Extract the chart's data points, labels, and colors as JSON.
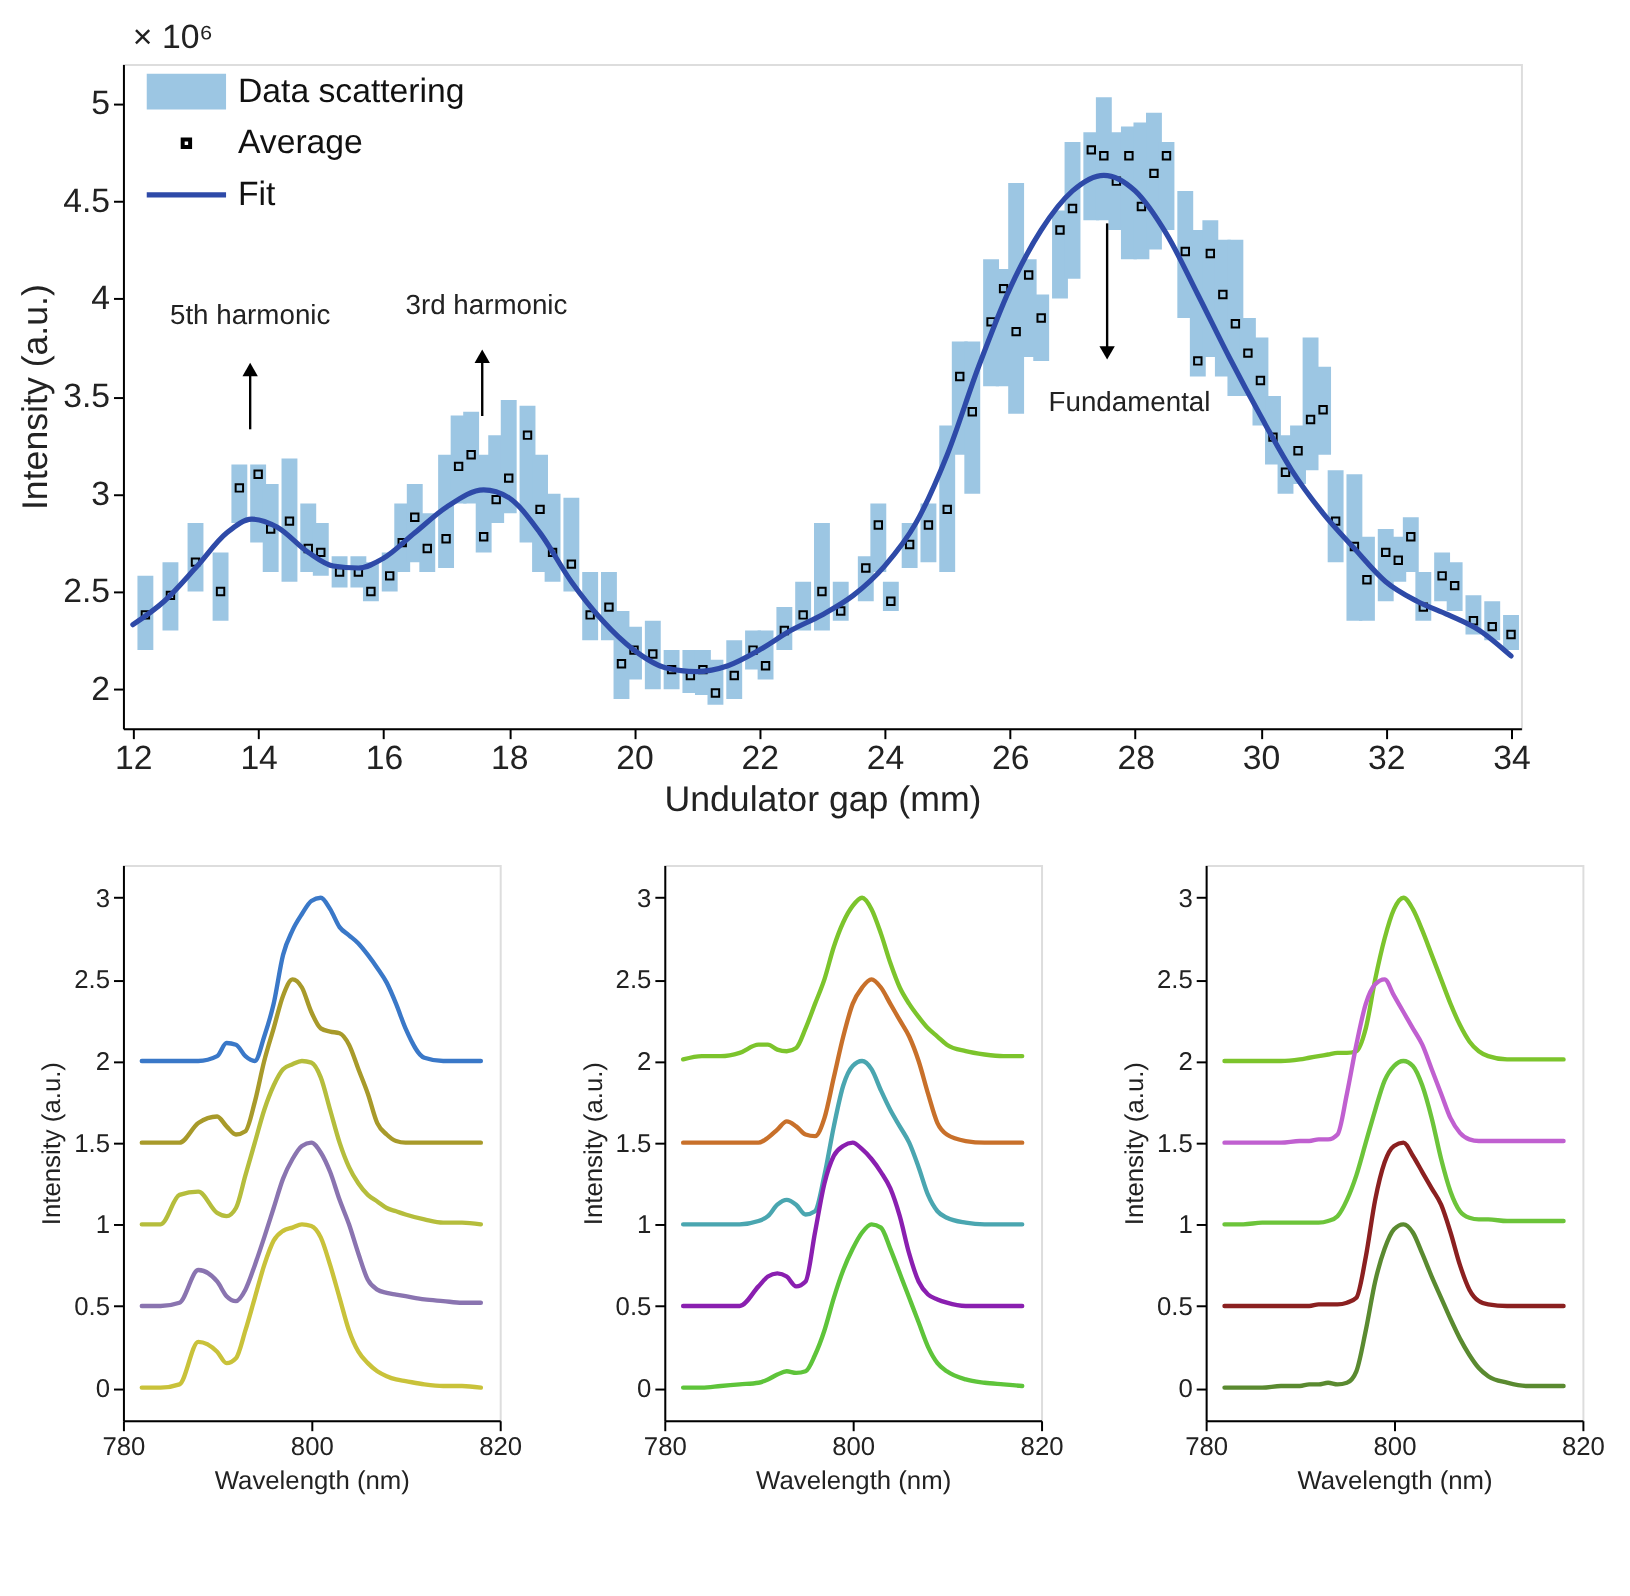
{
  "chart_data": [
    {
      "type": "line",
      "xlabel": "Undulator gap (mm)",
      "ylabel": "Intensity (a.u.)",
      "xlim": [
        12,
        34
      ],
      "xticks": [
        12,
        14,
        16,
        18,
        20,
        22,
        24,
        26,
        28,
        30,
        32,
        34
      ],
      "ylim": [
        1.8,
        5.2
      ],
      "yticks": [
        2,
        2.5,
        3,
        3.5,
        4,
        4.5,
        5
      ],
      "grid": false,
      "legend": "top left",
      "annotations": [
        "× 10⁶",
        "5th harmonic",
        "3rd harmonic",
        "Fundamental"
      ],
      "series": [
        {
          "name": "Data scattering",
          "type": "bar",
          "color": "#9cc6e3",
          "x": [
            12.2,
            12.6,
            13.0,
            13.4,
            13.7,
            14.0,
            14.2,
            14.5,
            14.8,
            15.0,
            15.3,
            15.6,
            15.8,
            16.1,
            16.3,
            16.5,
            16.7,
            17.0,
            17.2,
            17.4,
            17.6,
            17.8,
            18.0,
            18.3,
            18.5,
            18.7,
            19.0,
            19.3,
            19.6,
            19.8,
            20.0,
            20.3,
            20.6,
            20.9,
            21.1,
            21.3,
            21.6,
            21.9,
            22.1,
            22.4,
            22.7,
            23.0,
            23.3,
            23.7,
            23.9,
            24.1,
            24.4,
            24.7,
            25.0,
            25.2,
            25.4,
            25.7,
            25.9,
            26.1,
            26.3,
            26.5,
            26.8,
            27.0,
            27.3,
            27.5,
            27.7,
            27.9,
            28.1,
            28.3,
            28.5,
            28.8,
            29.0,
            29.2,
            29.4,
            29.6,
            29.8,
            30.0,
            30.2,
            30.4,
            30.6,
            30.8,
            31.0,
            31.2,
            31.5,
            31.7,
            32.0,
            32.2,
            32.4,
            32.6,
            32.9,
            33.1,
            33.4,
            33.7,
            34.0
          ],
          "base": [
            2.2,
            2.3,
            2.5,
            2.35,
            2.85,
            2.75,
            2.6,
            2.55,
            2.6,
            2.58,
            2.52,
            2.52,
            2.45,
            2.5,
            2.6,
            2.65,
            2.6,
            2.62,
            2.95,
            2.95,
            2.7,
            2.85,
            2.9,
            2.75,
            2.6,
            2.55,
            2.5,
            2.25,
            2.25,
            1.95,
            2.05,
            2.0,
            2.0,
            1.98,
            1.97,
            1.92,
            1.95,
            2.1,
            2.05,
            2.2,
            2.3,
            2.3,
            2.35,
            2.45,
            2.6,
            2.4,
            2.62,
            2.65,
            2.6,
            3.2,
            3.0,
            3.55,
            3.55,
            3.41,
            3.7,
            3.68,
            4.0,
            4.1,
            4.4,
            4.4,
            4.35,
            4.2,
            4.2,
            4.25,
            4.35,
            3.9,
            3.6,
            3.7,
            3.6,
            3.5,
            3.5,
            3.35,
            3.15,
            3.0,
            3.05,
            3.12,
            3.2,
            2.65,
            2.35,
            2.35,
            2.45,
            2.55,
            2.6,
            2.35,
            2.45,
            2.4,
            2.28,
            2.25,
            2.2
          ],
          "values": [
            0.38,
            0.35,
            0.35,
            0.35,
            0.3,
            0.4,
            0.45,
            0.63,
            0.35,
            0.27,
            0.16,
            0.16,
            0.2,
            0.2,
            0.35,
            0.4,
            0.3,
            0.58,
            0.45,
            0.47,
            0.5,
            0.45,
            0.58,
            0.7,
            0.6,
            0.45,
            0.48,
            0.35,
            0.35,
            0.45,
            0.27,
            0.35,
            0.2,
            0.22,
            0.23,
            0.23,
            0.3,
            0.2,
            0.25,
            0.22,
            0.25,
            0.55,
            0.2,
            0.23,
            0.35,
            0.15,
            0.23,
            0.3,
            0.75,
            0.58,
            0.78,
            0.65,
            0.6,
            1.18,
            0.5,
            0.34,
            0.45,
            0.7,
            0.45,
            0.63,
            0.5,
            0.68,
            0.7,
            0.7,
            0.45,
            0.65,
            0.75,
            0.7,
            0.7,
            0.8,
            0.4,
            0.45,
            0.35,
            0.3,
            0.3,
            0.68,
            0.45,
            0.47,
            0.75,
            0.43,
            0.37,
            0.23,
            0.28,
            0.25,
            0.25,
            0.25,
            0.2,
            0.2,
            0.18
          ]
        },
        {
          "name": "Average",
          "type": "scatter",
          "color": "#000000",
          "marker": "square",
          "x": [
            12.2,
            12.6,
            13.0,
            13.4,
            13.7,
            14.0,
            14.2,
            14.5,
            14.8,
            15.0,
            15.3,
            15.6,
            15.8,
            16.1,
            16.3,
            16.5,
            16.7,
            17.0,
            17.2,
            17.4,
            17.6,
            17.8,
            18.0,
            18.3,
            18.5,
            18.7,
            19.0,
            19.3,
            19.6,
            19.8,
            20.0,
            20.3,
            20.6,
            20.9,
            21.1,
            21.3,
            21.6,
            21.9,
            22.1,
            22.4,
            22.7,
            23.0,
            23.3,
            23.7,
            23.9,
            24.1,
            24.4,
            24.7,
            25.0,
            25.2,
            25.4,
            25.7,
            25.9,
            26.1,
            26.3,
            26.5,
            26.8,
            27.0,
            27.3,
            27.5,
            27.7,
            27.9,
            28.1,
            28.3,
            28.5,
            28.8,
            29.0,
            29.2,
            29.4,
            29.6,
            29.8,
            30.0,
            30.2,
            30.4,
            30.6,
            30.8,
            31.0,
            31.2,
            31.5,
            31.7,
            32.0,
            32.2,
            32.4,
            32.6,
            32.9,
            33.1,
            33.4,
            33.7,
            34.0
          ],
          "values": [
            2.38,
            2.48,
            2.65,
            2.5,
            3.03,
            3.1,
            2.82,
            2.86,
            2.72,
            2.7,
            2.6,
            2.6,
            2.5,
            2.58,
            2.75,
            2.88,
            2.72,
            2.77,
            3.14,
            3.2,
            2.78,
            2.97,
            3.08,
            3.3,
            2.92,
            2.7,
            2.64,
            2.38,
            2.42,
            2.13,
            2.2,
            2.18,
            2.1,
            2.07,
            2.1,
            1.98,
            2.07,
            2.2,
            2.12,
            2.3,
            2.38,
            2.5,
            2.4,
            2.62,
            2.84,
            2.45,
            2.74,
            2.84,
            2.92,
            3.6,
            3.42,
            3.88,
            4.05,
            3.83,
            4.12,
            3.9,
            4.35,
            4.46,
            4.76,
            4.73,
            4.6,
            4.73,
            4.47,
            4.64,
            4.73,
            4.24,
            3.68,
            4.23,
            4.02,
            3.87,
            3.72,
            3.58,
            3.29,
            3.11,
            3.22,
            3.38,
            3.43,
            2.86,
            2.73,
            2.56,
            2.7,
            2.66,
            2.78,
            2.42,
            2.58,
            2.53,
            2.35,
            2.32,
            2.28
          ]
        },
        {
          "name": "Fit",
          "type": "line",
          "color": "#2e4aa8",
          "x": [
            12,
            12.5,
            13,
            13.5,
            13.9,
            14.3,
            14.8,
            15.2,
            15.6,
            16,
            16.5,
            17,
            17.6,
            18,
            18.5,
            19,
            19.5,
            20,
            20.5,
            21,
            21.5,
            22,
            22.5,
            23,
            23.5,
            24,
            24.5,
            25,
            25.5,
            26,
            26.5,
            27,
            27.5,
            28,
            28.5,
            29,
            29.5,
            30,
            30.5,
            31,
            31.5,
            32,
            32.5,
            33,
            33.5,
            34
          ],
          "values": [
            2.33,
            2.45,
            2.62,
            2.8,
            2.87,
            2.83,
            2.7,
            2.63,
            2.62,
            2.67,
            2.8,
            2.93,
            3.02,
            2.98,
            2.8,
            2.55,
            2.35,
            2.2,
            2.11,
            2.09,
            2.12,
            2.2,
            2.3,
            2.38,
            2.48,
            2.63,
            2.85,
            3.2,
            3.65,
            4.05,
            4.35,
            4.55,
            4.63,
            4.55,
            4.33,
            4.02,
            3.7,
            3.4,
            3.12,
            2.9,
            2.72,
            2.55,
            2.45,
            2.38,
            2.3,
            2.17
          ]
        }
      ]
    },
    {
      "type": "line",
      "xlabel": "Wavelength (nm)",
      "ylabel": "Intensity (a.u.)",
      "xlim": [
        780,
        820
      ],
      "xticks": [
        780,
        800,
        820
      ],
      "ylim": [
        -0.2,
        3.2
      ],
      "yticks": [
        0,
        0.5,
        1,
        1.5,
        2,
        2.5,
        3
      ],
      "grid": false,
      "x": [
        782,
        784,
        786,
        788,
        790,
        791,
        792,
        793,
        794,
        795,
        796,
        797,
        798,
        799,
        800,
        801,
        802,
        803,
        804,
        805,
        806,
        807,
        808,
        809,
        810,
        812,
        814,
        816,
        818
      ],
      "series": [
        {
          "color": "#3a78c8",
          "values": [
            2,
            2,
            2,
            2,
            2.03,
            2.11,
            2.1,
            2.03,
            2.0,
            2.15,
            2.35,
            2.65,
            2.8,
            2.9,
            2.98,
            3.0,
            2.93,
            2.82,
            2.77,
            2.72,
            2.65,
            2.57,
            2.48,
            2.35,
            2.2,
            2.02,
            2,
            2,
            2
          ]
        },
        {
          "color": "#a89a2a",
          "values": [
            1.5,
            1.5,
            1.5,
            1.62,
            1.66,
            1.6,
            1.55,
            1.57,
            1.75,
            2.0,
            2.2,
            2.4,
            2.5,
            2.45,
            2.3,
            2.2,
            2.18,
            2.17,
            2.1,
            1.95,
            1.8,
            1.62,
            1.55,
            1.51,
            1.5,
            1.5,
            1.5,
            1.5,
            1.5
          ]
        },
        {
          "color": "#b5bd3c",
          "values": [
            1,
            1,
            1.18,
            1.2,
            1.07,
            1.05,
            1.1,
            1.3,
            1.5,
            1.7,
            1.85,
            1.95,
            1.98,
            2.0,
            1.99,
            1.9,
            1.7,
            1.5,
            1.35,
            1.25,
            1.18,
            1.14,
            1.1,
            1.08,
            1.06,
            1.03,
            1.01,
            1.01,
            1.0
          ]
        },
        {
          "color": "#8a74b0",
          "values": [
            0.5,
            0.5,
            0.52,
            0.72,
            0.65,
            0.56,
            0.53,
            0.6,
            0.75,
            0.92,
            1.1,
            1.28,
            1.4,
            1.48,
            1.5,
            1.44,
            1.32,
            1.15,
            1.0,
            0.82,
            0.66,
            0.6,
            0.58,
            0.57,
            0.56,
            0.54,
            0.53,
            0.52,
            0.52
          ]
        },
        {
          "color": "#c9c23a",
          "values": [
            0,
            0,
            0.02,
            0.28,
            0.22,
            0.15,
            0.18,
            0.35,
            0.55,
            0.75,
            0.9,
            0.96,
            0.98,
            1.0,
            0.99,
            0.92,
            0.75,
            0.55,
            0.35,
            0.22,
            0.15,
            0.1,
            0.07,
            0.05,
            0.04,
            0.02,
            0.01,
            0.01,
            0
          ]
        }
      ]
    },
    {
      "type": "line",
      "xlabel": "Wavelength (nm)",
      "ylabel": "Intensity (a.u.)",
      "xlim": [
        780,
        820
      ],
      "xticks": [
        780,
        800,
        820
      ],
      "ylim": [
        -0.2,
        3.2
      ],
      "yticks": [
        0,
        0.5,
        1,
        1.5,
        2,
        2.5,
        3
      ],
      "grid": false,
      "x": [
        782,
        784,
        786,
        788,
        790,
        791,
        792,
        793,
        794,
        795,
        796,
        797,
        798,
        799,
        800,
        801,
        802,
        803,
        804,
        805,
        806,
        807,
        808,
        809,
        810,
        812,
        814,
        816,
        818
      ],
      "series": [
        {
          "color": "#7cc42c",
          "values": [
            2.01,
            2.03,
            2.03,
            2.05,
            2.1,
            2.1,
            2.07,
            2.06,
            2.08,
            2.2,
            2.35,
            2.5,
            2.7,
            2.85,
            2.95,
            3.0,
            2.93,
            2.78,
            2.6,
            2.45,
            2.35,
            2.27,
            2.2,
            2.15,
            2.1,
            2.06,
            2.04,
            2.03,
            2.03
          ]
        },
        {
          "color": "#c8702a",
          "values": [
            1.5,
            1.5,
            1.5,
            1.5,
            1.5,
            1.53,
            1.58,
            1.63,
            1.6,
            1.55,
            1.54,
            1.65,
            1.9,
            2.15,
            2.35,
            2.45,
            2.5,
            2.45,
            2.35,
            2.25,
            2.15,
            2.0,
            1.8,
            1.62,
            1.55,
            1.51,
            1.5,
            1.5,
            1.5
          ]
        },
        {
          "color": "#4aa6b0",
          "values": [
            1,
            1,
            1,
            1,
            1.02,
            1.05,
            1.12,
            1.15,
            1.12,
            1.06,
            1.08,
            1.3,
            1.6,
            1.85,
            1.97,
            2.0,
            1.95,
            1.82,
            1.7,
            1.6,
            1.5,
            1.35,
            1.18,
            1.08,
            1.04,
            1.01,
            1,
            1,
            1
          ]
        },
        {
          "color": "#8a1fb0",
          "values": [
            0.5,
            0.5,
            0.5,
            0.5,
            0.62,
            0.68,
            0.7,
            0.68,
            0.62,
            0.65,
            0.95,
            1.25,
            1.42,
            1.48,
            1.5,
            1.46,
            1.4,
            1.32,
            1.22,
            1.05,
            0.82,
            0.65,
            0.57,
            0.54,
            0.52,
            0.5,
            0.5,
            0.5,
            0.5
          ]
        },
        {
          "color": "#5ec43a",
          "values": [
            0,
            0,
            0.01,
            0.02,
            0.03,
            0.05,
            0.08,
            0.1,
            0.09,
            0.1,
            0.2,
            0.35,
            0.55,
            0.72,
            0.85,
            0.95,
            1.0,
            0.98,
            0.85,
            0.7,
            0.55,
            0.4,
            0.25,
            0.15,
            0.1,
            0.05,
            0.03,
            0.02,
            0.01
          ]
        }
      ]
    },
    {
      "type": "line",
      "xlabel": "Wavelength (nm)",
      "ylabel": "Intensity (a.u.)",
      "xlim": [
        780,
        820
      ],
      "xticks": [
        780,
        800,
        820
      ],
      "ylim": [
        -0.2,
        3.2
      ],
      "yticks": [
        0,
        0.5,
        1,
        1.5,
        2,
        2.5,
        3
      ],
      "grid": false,
      "x": [
        782,
        784,
        786,
        788,
        790,
        791,
        792,
        793,
        794,
        795,
        796,
        797,
        798,
        799,
        800,
        801,
        802,
        803,
        804,
        805,
        806,
        807,
        808,
        809,
        810,
        812,
        814,
        816,
        818
      ],
      "series": [
        {
          "color": "#7cc42c",
          "values": [
            2,
            2,
            2,
            2,
            2.01,
            2.02,
            2.03,
            2.04,
            2.05,
            2.05,
            2.06,
            2.2,
            2.5,
            2.75,
            2.93,
            3.0,
            2.93,
            2.8,
            2.65,
            2.5,
            2.35,
            2.22,
            2.12,
            2.06,
            2.03,
            2.01,
            2.01,
            2.01,
            2.01
          ]
        },
        {
          "color": "#c060d0",
          "values": [
            1.5,
            1.5,
            1.5,
            1.5,
            1.51,
            1.51,
            1.52,
            1.52,
            1.55,
            1.8,
            2.1,
            2.35,
            2.47,
            2.5,
            2.4,
            2.3,
            2.2,
            2.1,
            1.95,
            1.8,
            1.65,
            1.56,
            1.52,
            1.51,
            1.51,
            1.51,
            1.51,
            1.51,
            1.51
          ]
        },
        {
          "color": "#6cc43a",
          "values": [
            1,
            1,
            1.01,
            1.01,
            1.01,
            1.01,
            1.01,
            1.02,
            1.05,
            1.15,
            1.3,
            1.5,
            1.7,
            1.88,
            1.97,
            2.0,
            1.97,
            1.85,
            1.65,
            1.4,
            1.2,
            1.08,
            1.04,
            1.03,
            1.03,
            1.02,
            1.02,
            1.02,
            1.02
          ]
        },
        {
          "color": "#8b2020",
          "values": [
            0.5,
            0.5,
            0.5,
            0.5,
            0.5,
            0.5,
            0.51,
            0.51,
            0.51,
            0.52,
            0.55,
            0.8,
            1.15,
            1.38,
            1.48,
            1.5,
            1.42,
            1.32,
            1.22,
            1.12,
            0.95,
            0.75,
            0.6,
            0.53,
            0.51,
            0.5,
            0.5,
            0.5,
            0.5
          ]
        },
        {
          "color": "#5a8a30",
          "values": [
            0,
            0,
            0,
            0.01,
            0.01,
            0.02,
            0.02,
            0.03,
            0.02,
            0.03,
            0.1,
            0.35,
            0.65,
            0.85,
            0.97,
            1.0,
            0.95,
            0.82,
            0.68,
            0.55,
            0.42,
            0.3,
            0.2,
            0.12,
            0.07,
            0.03,
            0.01,
            0.01,
            0.01
          ]
        }
      ]
    }
  ]
}
